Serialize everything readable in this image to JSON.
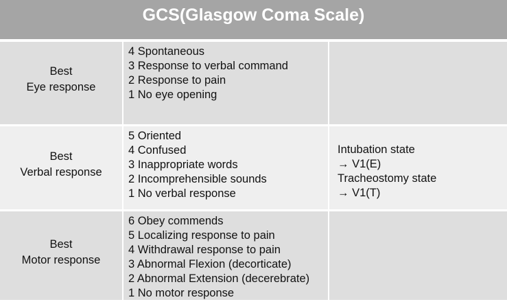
{
  "title": "GCS(Glasgow Coma Scale)",
  "rows": [
    {
      "category": [
        "Best",
        "Eye response"
      ],
      "items": [
        "4 Spontaneous",
        "3 Response to verbal command",
        "2 Response to pain",
        "1 No eye opening"
      ],
      "notes": []
    },
    {
      "category": [
        "Best",
        "Verbal response"
      ],
      "items": [
        "5 Oriented",
        "4 Confused",
        "3 Inappropriate words",
        "2 Incomprehensible sounds",
        "1 No verbal response"
      ],
      "notes": [
        "Intubation state",
        "→ V1(E)",
        "Tracheostomy state",
        "→ V1(T)"
      ]
    },
    {
      "category": [
        "Best",
        "Motor response"
      ],
      "items": [
        "6 Obey commends",
        "5 Localizing response to pain",
        "4 Withdrawal response to pain",
        "3 Abnormal Flexion (decorticate)",
        "2 Abnormal Extension (decerebrate)",
        "1 No motor response"
      ],
      "notes": []
    }
  ]
}
